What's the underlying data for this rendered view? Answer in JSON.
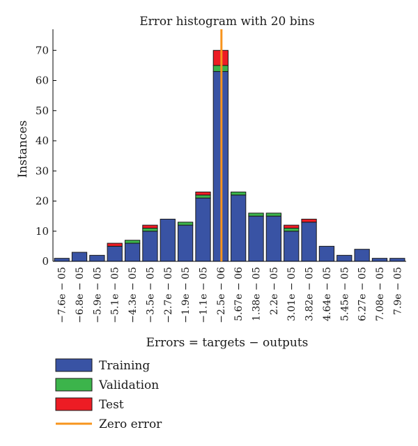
{
  "chart_data": {
    "type": "bar",
    "stacked": true,
    "title": "Error histogram with 20 bins",
    "xlabel": "Errors = targets − outputs",
    "ylabel": "Instances",
    "ylim": [
      0,
      77
    ],
    "yticks": [
      0,
      10,
      20,
      30,
      40,
      50,
      60,
      70
    ],
    "grid": false,
    "legend_position": "bottom-left",
    "categories": [
      "−7.6e − 05",
      "−6.8e − 05",
      "−5.9e − 05",
      "−5.1e − 05",
      "−4.3e − 05",
      "−3.5e − 05",
      "−2.7e − 05",
      "−1.9e − 05",
      "−1.1e − 05",
      "−2.5e − 06",
      "5.67e − 06",
      "1.38e − 05",
      "2.2e − 05",
      "3.01e − 05",
      "3.82e − 05",
      "4.64e − 05",
      "5.45e − 05",
      "6.27e − 05",
      "7.08e − 05",
      "7.9e − 05"
    ],
    "series": [
      {
        "name": "Training",
        "color": "#3953a4",
        "values": [
          1,
          3,
          2,
          5,
          6,
          10,
          14,
          12,
          21,
          63,
          22,
          15,
          15,
          10,
          13,
          5,
          2,
          4,
          1,
          1
        ]
      },
      {
        "name": "Validation",
        "color": "#3cb44b",
        "values": [
          0,
          0,
          0,
          0,
          1,
          1,
          0,
          1,
          1,
          2,
          1,
          1,
          1,
          1,
          0,
          0,
          0,
          0,
          0,
          0
        ]
      },
      {
        "name": "Test",
        "color": "#ed1c24",
        "values": [
          0,
          0,
          0,
          1,
          0,
          1,
          0,
          0,
          1,
          5,
          0,
          0,
          0,
          1,
          1,
          0,
          0,
          0,
          0,
          0
        ]
      }
    ],
    "reference_line": {
      "name": "Zero error",
      "color": "#f7941d",
      "category_index": 9
    }
  }
}
